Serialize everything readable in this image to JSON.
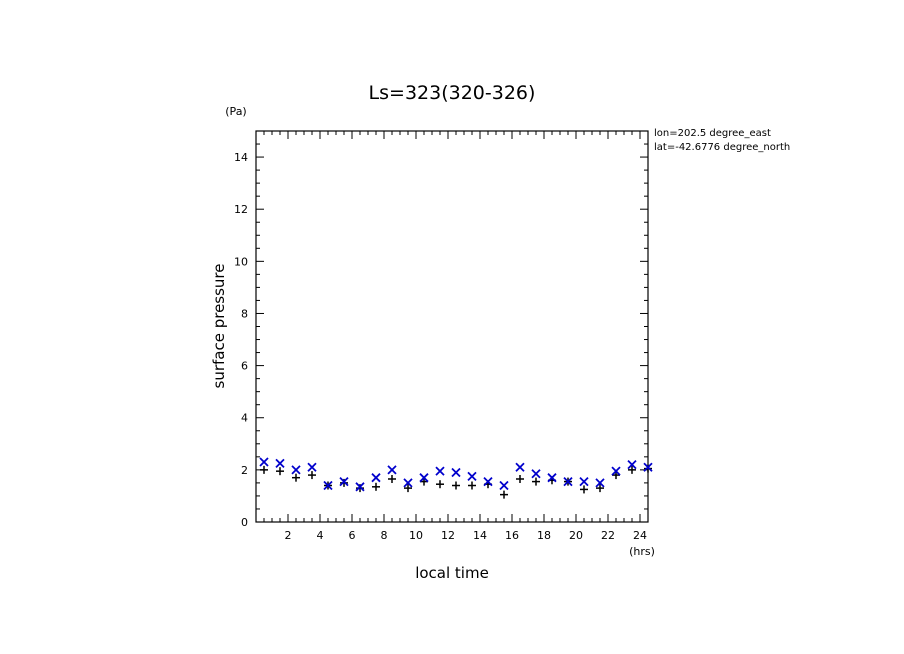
{
  "chart_data": {
    "type": "scatter",
    "title": "Ls=323(320-326)",
    "xlabel": "local time",
    "ylabel": "surface pressure",
    "x_unit": "(hrs)",
    "y_unit": "(Pa)",
    "xlim": [
      0,
      24.5
    ],
    "ylim": [
      0,
      15
    ],
    "x_ticks": [
      "2",
      "4",
      "6",
      "8",
      "10",
      "12",
      "14",
      "16",
      "18",
      "20",
      "22",
      "24"
    ],
    "y_ticks": [
      "0",
      "2",
      "4",
      "6",
      "8",
      "10",
      "12",
      "14"
    ],
    "annotations": [
      "lon=202.5 degree_east",
      "lat=-42.6776 degree_north"
    ],
    "x": [
      0.5,
      1.5,
      2.5,
      3.5,
      4.5,
      5.5,
      6.5,
      7.5,
      8.5,
      9.5,
      10.5,
      11.5,
      12.5,
      13.5,
      14.5,
      15.5,
      16.5,
      17.5,
      18.5,
      19.5,
      20.5,
      21.5,
      22.5,
      23.5,
      24.5
    ],
    "series": [
      {
        "marker": "+",
        "color": "#000000",
        "values": [
          2.0,
          1.95,
          1.7,
          1.8,
          1.4,
          1.5,
          1.3,
          1.35,
          1.65,
          1.3,
          1.55,
          1.45,
          1.4,
          1.4,
          1.45,
          1.05,
          1.65,
          1.55,
          1.6,
          1.55,
          1.25,
          1.3,
          1.8,
          2.0,
          2.05
        ]
      },
      {
        "marker": "x",
        "color": "#0000cc",
        "values": [
          2.3,
          2.25,
          2.0,
          2.1,
          1.4,
          1.55,
          1.35,
          1.7,
          2.0,
          1.5,
          1.7,
          1.95,
          1.9,
          1.75,
          1.55,
          1.4,
          2.1,
          1.85,
          1.7,
          1.55,
          1.55,
          1.5,
          1.95,
          2.2,
          2.1
        ]
      }
    ]
  }
}
